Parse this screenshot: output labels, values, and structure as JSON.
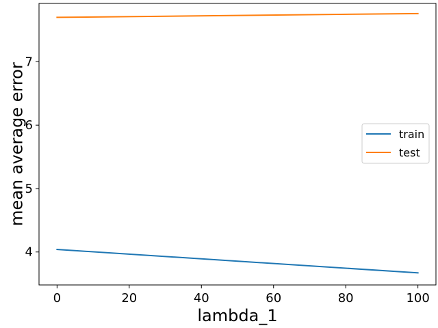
{
  "chart_data": {
    "type": "line",
    "title": "",
    "xlabel": "lambda_1",
    "ylabel": "mean average error",
    "xlim": [
      -5,
      105
    ],
    "ylim": [
      3.48,
      7.92
    ],
    "x_ticks": [
      0,
      20,
      40,
      60,
      80,
      100
    ],
    "y_ticks": [
      4,
      5,
      6,
      7
    ],
    "grid": false,
    "legend_position": "center-right",
    "series": [
      {
        "name": "train",
        "color": "#1f77b4",
        "x": [
          0,
          100
        ],
        "y": [
          4.04,
          3.67
        ]
      },
      {
        "name": "test",
        "color": "#ff7f0e",
        "x": [
          0,
          100
        ],
        "y": [
          7.7,
          7.76
        ]
      }
    ]
  }
}
